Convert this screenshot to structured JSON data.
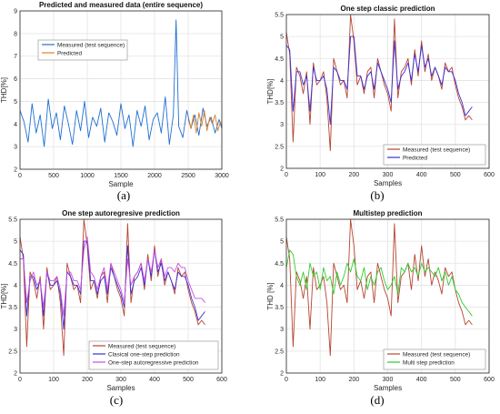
{
  "chart_data": [
    {
      "type": "line",
      "title": "Predicted and measured data (entire sequence)",
      "xlabel": "Sample",
      "ylabel": "THD[%]",
      "xlim": [
        0,
        3000
      ],
      "ylim": [
        2,
        9
      ],
      "xticks": [
        0,
        500,
        1000,
        1500,
        2000,
        2500,
        3000
      ],
      "yticks": [
        2,
        3,
        4,
        5,
        6,
        7,
        8,
        9
      ],
      "grid": true,
      "legend_position": "top-left",
      "caption": "(a)",
      "series": [
        {
          "name": "Measured (test sequence)",
          "color": "#1f6fd1",
          "x": [
            0,
            60,
            120,
            180,
            240,
            300,
            360,
            420,
            480,
            540,
            600,
            660,
            720,
            780,
            840,
            900,
            960,
            1020,
            1080,
            1140,
            1200,
            1260,
            1320,
            1380,
            1440,
            1500,
            1560,
            1620,
            1680,
            1740,
            1800,
            1860,
            1920,
            1980,
            2040,
            2100,
            2160,
            2220,
            2280,
            2320,
            2360,
            2420,
            2480,
            2540,
            2600,
            2660,
            2720,
            2780,
            2840,
            2900,
            2960,
            3000
          ],
          "y": [
            4.6,
            4.1,
            3.2,
            4.9,
            3.6,
            4.4,
            3.0,
            5.1,
            3.8,
            4.5,
            3.3,
            4.8,
            4.0,
            3.1,
            4.6,
            3.7,
            5.0,
            3.4,
            4.3,
            3.9,
            4.7,
            3.2,
            4.5,
            4.1,
            3.5,
            4.9,
            3.8,
            4.4,
            3.0,
            4.6,
            3.9,
            4.8,
            3.3,
            4.2,
            4.5,
            3.6,
            5.2,
            3.1,
            4.4,
            8.6,
            3.9,
            3.4,
            4.6,
            3.8,
            4.4,
            3.5,
            4.7,
            3.9,
            4.3,
            3.6,
            4.2,
            3.8
          ]
        },
        {
          "name": "Predicted",
          "color": "#d9822b",
          "x": [
            2500,
            2540,
            2580,
            2620,
            2660,
            2700,
            2740,
            2780,
            2820,
            2860,
            2900,
            2940,
            2980,
            3000
          ],
          "y": [
            4.2,
            3.8,
            4.4,
            3.6,
            4.5,
            3.9,
            4.6,
            3.7,
            4.3,
            4.0,
            4.4,
            3.7,
            4.1,
            3.9
          ]
        }
      ]
    },
    {
      "type": "line",
      "title": "One step classic prediction",
      "xlabel": "Samples",
      "ylabel": "THD[%]",
      "xlim": [
        0,
        600
      ],
      "ylim": [
        2,
        5.5
      ],
      "xticks": [
        0,
        100,
        200,
        300,
        400,
        500,
        600
      ],
      "yticks": [
        2,
        2.5,
        3,
        3.5,
        4,
        4.5,
        5,
        5.5
      ],
      "grid": true,
      "legend_position": "bottom-right",
      "caption": "(b)",
      "series": [
        {
          "name": "Measured (test sequence)",
          "color": "#b5452f",
          "x": [
            0,
            10,
            20,
            30,
            40,
            50,
            60,
            70,
            80,
            90,
            100,
            110,
            120,
            130,
            140,
            150,
            160,
            170,
            180,
            190,
            200,
            210,
            220,
            230,
            240,
            250,
            260,
            270,
            280,
            290,
            300,
            310,
            320,
            330,
            340,
            350,
            360,
            370,
            380,
            390,
            400,
            410,
            420,
            430,
            440,
            450,
            460,
            470,
            480,
            490,
            500,
            510,
            520,
            530,
            540,
            550
          ],
          "y": [
            5.1,
            4.6,
            2.6,
            4.3,
            4.1,
            3.7,
            4.2,
            3.0,
            4.4,
            3.9,
            4.0,
            4.2,
            3.6,
            2.4,
            4.5,
            4.2,
            3.9,
            4.0,
            3.6,
            5.5,
            4.9,
            3.9,
            4.1,
            3.7,
            4.2,
            4.3,
            3.6,
            4.5,
            4.2,
            3.9,
            3.7,
            3.3,
            5.4,
            3.6,
            4.2,
            4.3,
            4.5,
            3.9,
            4.7,
            4.1,
            4.9,
            4.2,
            4.6,
            4.0,
            4.3,
            4.1,
            3.8,
            4.4,
            4.2,
            4.3,
            3.9,
            3.6,
            3.4,
            3.1,
            3.2,
            3.1
          ]
        },
        {
          "name": "Predicted",
          "color": "#3b2fd6",
          "x": [
            0,
            10,
            20,
            30,
            40,
            50,
            60,
            70,
            80,
            90,
            100,
            110,
            120,
            130,
            140,
            150,
            160,
            170,
            180,
            190,
            200,
            210,
            220,
            230,
            240,
            250,
            260,
            270,
            280,
            290,
            300,
            310,
            320,
            330,
            340,
            350,
            360,
            370,
            380,
            390,
            400,
            410,
            420,
            430,
            440,
            450,
            460,
            470,
            480,
            490,
            500,
            510,
            520,
            530,
            540,
            550
          ],
          "y": [
            4.8,
            4.7,
            3.3,
            4.2,
            4.2,
            3.9,
            4.1,
            3.3,
            4.3,
            4.0,
            4.0,
            4.1,
            3.8,
            3.0,
            4.3,
            4.2,
            4.0,
            4.0,
            3.8,
            5.0,
            5.0,
            4.1,
            4.1,
            3.8,
            4.1,
            4.2,
            3.8,
            4.4,
            4.2,
            4.0,
            3.8,
            3.5,
            4.9,
            3.8,
            4.1,
            4.2,
            4.4,
            4.0,
            4.6,
            4.2,
            4.8,
            4.3,
            4.5,
            4.1,
            4.3,
            4.1,
            3.9,
            4.3,
            4.2,
            4.2,
            4.0,
            3.7,
            3.5,
            3.2,
            3.3,
            3.4
          ]
        }
      ]
    },
    {
      "type": "line",
      "title": "One step autoregresive prediction",
      "xlabel": "Samples",
      "ylabel": "THD[%]",
      "xlim": [
        0,
        600
      ],
      "ylim": [
        2,
        5.5
      ],
      "xticks": [
        0,
        100,
        200,
        300,
        400,
        500,
        600
      ],
      "yticks": [
        2,
        2.5,
        3,
        3.5,
        4,
        4.5,
        5,
        5.5
      ],
      "grid": true,
      "legend_position": "bottom-right",
      "caption": "(c)",
      "series": [
        {
          "name": "Measured (test sequence)",
          "color": "#b5452f",
          "x": [
            0,
            10,
            20,
            30,
            40,
            50,
            60,
            70,
            80,
            90,
            100,
            110,
            120,
            130,
            140,
            150,
            160,
            170,
            180,
            190,
            200,
            210,
            220,
            230,
            240,
            250,
            260,
            270,
            280,
            290,
            300,
            310,
            320,
            330,
            340,
            350,
            360,
            370,
            380,
            390,
            400,
            410,
            420,
            430,
            440,
            450,
            460,
            470,
            480,
            490,
            500,
            510,
            520,
            530,
            540,
            550
          ],
          "y": [
            5.1,
            4.6,
            2.6,
            4.3,
            4.1,
            3.7,
            4.2,
            3.0,
            4.4,
            3.9,
            4.0,
            4.2,
            3.6,
            2.4,
            4.5,
            4.2,
            3.9,
            4.0,
            3.6,
            5.5,
            4.9,
            3.9,
            4.1,
            3.7,
            4.2,
            4.3,
            3.6,
            4.5,
            4.2,
            3.9,
            3.7,
            3.3,
            5.4,
            3.6,
            4.2,
            4.3,
            4.5,
            3.9,
            4.7,
            4.1,
            4.9,
            4.2,
            4.6,
            4.0,
            4.3,
            4.1,
            3.8,
            4.4,
            4.2,
            4.3,
            3.9,
            3.6,
            3.4,
            3.1,
            3.2,
            3.1
          ]
        },
        {
          "name": "Clasical one-step prediction",
          "color": "#3b2fd6",
          "x": [
            0,
            10,
            20,
            30,
            40,
            50,
            60,
            70,
            80,
            90,
            100,
            110,
            120,
            130,
            140,
            150,
            160,
            170,
            180,
            190,
            200,
            210,
            220,
            230,
            240,
            250,
            260,
            270,
            280,
            290,
            300,
            310,
            320,
            330,
            340,
            350,
            360,
            370,
            380,
            390,
            400,
            410,
            420,
            430,
            440,
            450,
            460,
            470,
            480,
            490,
            500,
            510,
            520,
            530,
            540,
            550
          ],
          "y": [
            4.8,
            4.7,
            3.3,
            4.2,
            4.2,
            3.9,
            4.1,
            3.3,
            4.3,
            4.0,
            4.0,
            4.1,
            3.8,
            3.0,
            4.3,
            4.2,
            4.0,
            4.0,
            3.8,
            5.0,
            5.0,
            4.1,
            4.1,
            3.8,
            4.1,
            4.2,
            3.8,
            4.4,
            4.2,
            4.0,
            3.8,
            3.5,
            4.9,
            3.8,
            4.1,
            4.2,
            4.4,
            4.0,
            4.6,
            4.2,
            4.8,
            4.3,
            4.5,
            4.1,
            4.3,
            4.1,
            3.9,
            4.3,
            4.2,
            4.2,
            4.0,
            3.7,
            3.5,
            3.2,
            3.3,
            3.4
          ]
        },
        {
          "name": "One-step autoregressive prediction",
          "color": "#c84fe0",
          "x": [
            0,
            10,
            20,
            30,
            40,
            50,
            60,
            70,
            80,
            90,
            100,
            110,
            120,
            130,
            140,
            150,
            160,
            170,
            180,
            190,
            200,
            210,
            220,
            230,
            240,
            250,
            260,
            270,
            280,
            290,
            300,
            310,
            320,
            330,
            340,
            350,
            360,
            370,
            380,
            390,
            400,
            410,
            420,
            430,
            440,
            450,
            460,
            470,
            480,
            490,
            500,
            510,
            520,
            530,
            540,
            550
          ],
          "y": [
            4.6,
            4.6,
            3.6,
            4.1,
            4.3,
            4.0,
            4.1,
            3.5,
            4.3,
            4.1,
            4.1,
            4.2,
            3.9,
            3.3,
            4.3,
            4.3,
            4.1,
            4.1,
            3.9,
            4.8,
            5.1,
            4.3,
            4.2,
            3.9,
            4.2,
            4.4,
            3.9,
            4.5,
            4.3,
            4.1,
            3.9,
            3.6,
            4.6,
            4.0,
            4.2,
            4.3,
            4.5,
            4.1,
            4.6,
            4.3,
            4.8,
            4.4,
            4.6,
            4.2,
            4.4,
            4.4,
            4.3,
            4.5,
            4.4,
            4.4,
            4.1,
            3.9,
            3.7,
            3.7,
            3.7,
            3.6
          ]
        }
      ]
    },
    {
      "type": "line",
      "title": "Multistep prediction",
      "xlabel": "Samples",
      "ylabel": "THD [%]",
      "xlim": [
        0,
        600
      ],
      "ylim": [
        2,
        5.5
      ],
      "xticks": [
        0,
        100,
        200,
        300,
        400,
        500,
        600
      ],
      "yticks": [
        2,
        2.5,
        3,
        3.5,
        4,
        4.5,
        5,
        5.5
      ],
      "grid": true,
      "legend_position": "bottom-right",
      "caption": "(d)",
      "series": [
        {
          "name": "Measured (test sequence)",
          "color": "#b5452f",
          "x": [
            0,
            10,
            20,
            30,
            40,
            50,
            60,
            70,
            80,
            90,
            100,
            110,
            120,
            130,
            140,
            150,
            160,
            170,
            180,
            190,
            200,
            210,
            220,
            230,
            240,
            250,
            260,
            270,
            280,
            290,
            300,
            310,
            320,
            330,
            340,
            350,
            360,
            370,
            380,
            390,
            400,
            410,
            420,
            430,
            440,
            450,
            460,
            470,
            480,
            490,
            500,
            510,
            520,
            530,
            540,
            550
          ],
          "y": [
            5.1,
            4.6,
            2.6,
            4.3,
            4.1,
            3.7,
            4.2,
            3.0,
            4.4,
            3.9,
            4.0,
            4.2,
            3.6,
            2.4,
            4.5,
            4.2,
            3.9,
            4.0,
            3.6,
            5.5,
            4.9,
            3.9,
            4.1,
            3.7,
            4.2,
            4.3,
            3.6,
            4.5,
            4.2,
            3.9,
            3.7,
            3.3,
            5.4,
            3.6,
            4.2,
            4.3,
            4.5,
            3.9,
            4.7,
            4.1,
            4.9,
            4.2,
            4.6,
            4.0,
            4.3,
            4.1,
            3.8,
            4.4,
            4.2,
            4.3,
            3.9,
            3.6,
            3.4,
            3.1,
            3.2,
            3.1
          ]
        },
        {
          "name": "Multi step prediction",
          "color": "#2ecc2e",
          "x": [
            0,
            10,
            20,
            30,
            40,
            50,
            60,
            70,
            80,
            90,
            100,
            110,
            120,
            130,
            140,
            150,
            160,
            170,
            180,
            190,
            200,
            210,
            220,
            230,
            240,
            250,
            260,
            270,
            280,
            290,
            300,
            310,
            320,
            330,
            340,
            350,
            360,
            370,
            380,
            390,
            400,
            410,
            420,
            430,
            440,
            450,
            460,
            470,
            480,
            490,
            500,
            510,
            520,
            530,
            540,
            550
          ],
          "y": [
            4.4,
            4.8,
            4.7,
            4.2,
            4.0,
            4.3,
            3.9,
            4.5,
            4.2,
            4.3,
            3.9,
            4.4,
            4.1,
            4.2,
            3.8,
            4.3,
            4.0,
            4.2,
            4.5,
            4.3,
            4.6,
            4.2,
            4.1,
            4.4,
            3.9,
            4.2,
            4.0,
            4.3,
            4.4,
            4.1,
            3.9,
            4.0,
            4.2,
            3.8,
            4.4,
            4.3,
            4.5,
            4.3,
            4.4,
            4.2,
            4.5,
            4.3,
            4.4,
            4.3,
            4.2,
            4.4,
            4.1,
            4.3,
            4.0,
            4.2,
            3.9,
            3.8,
            3.6,
            3.5,
            3.4,
            3.3
          ]
        }
      ]
    }
  ]
}
